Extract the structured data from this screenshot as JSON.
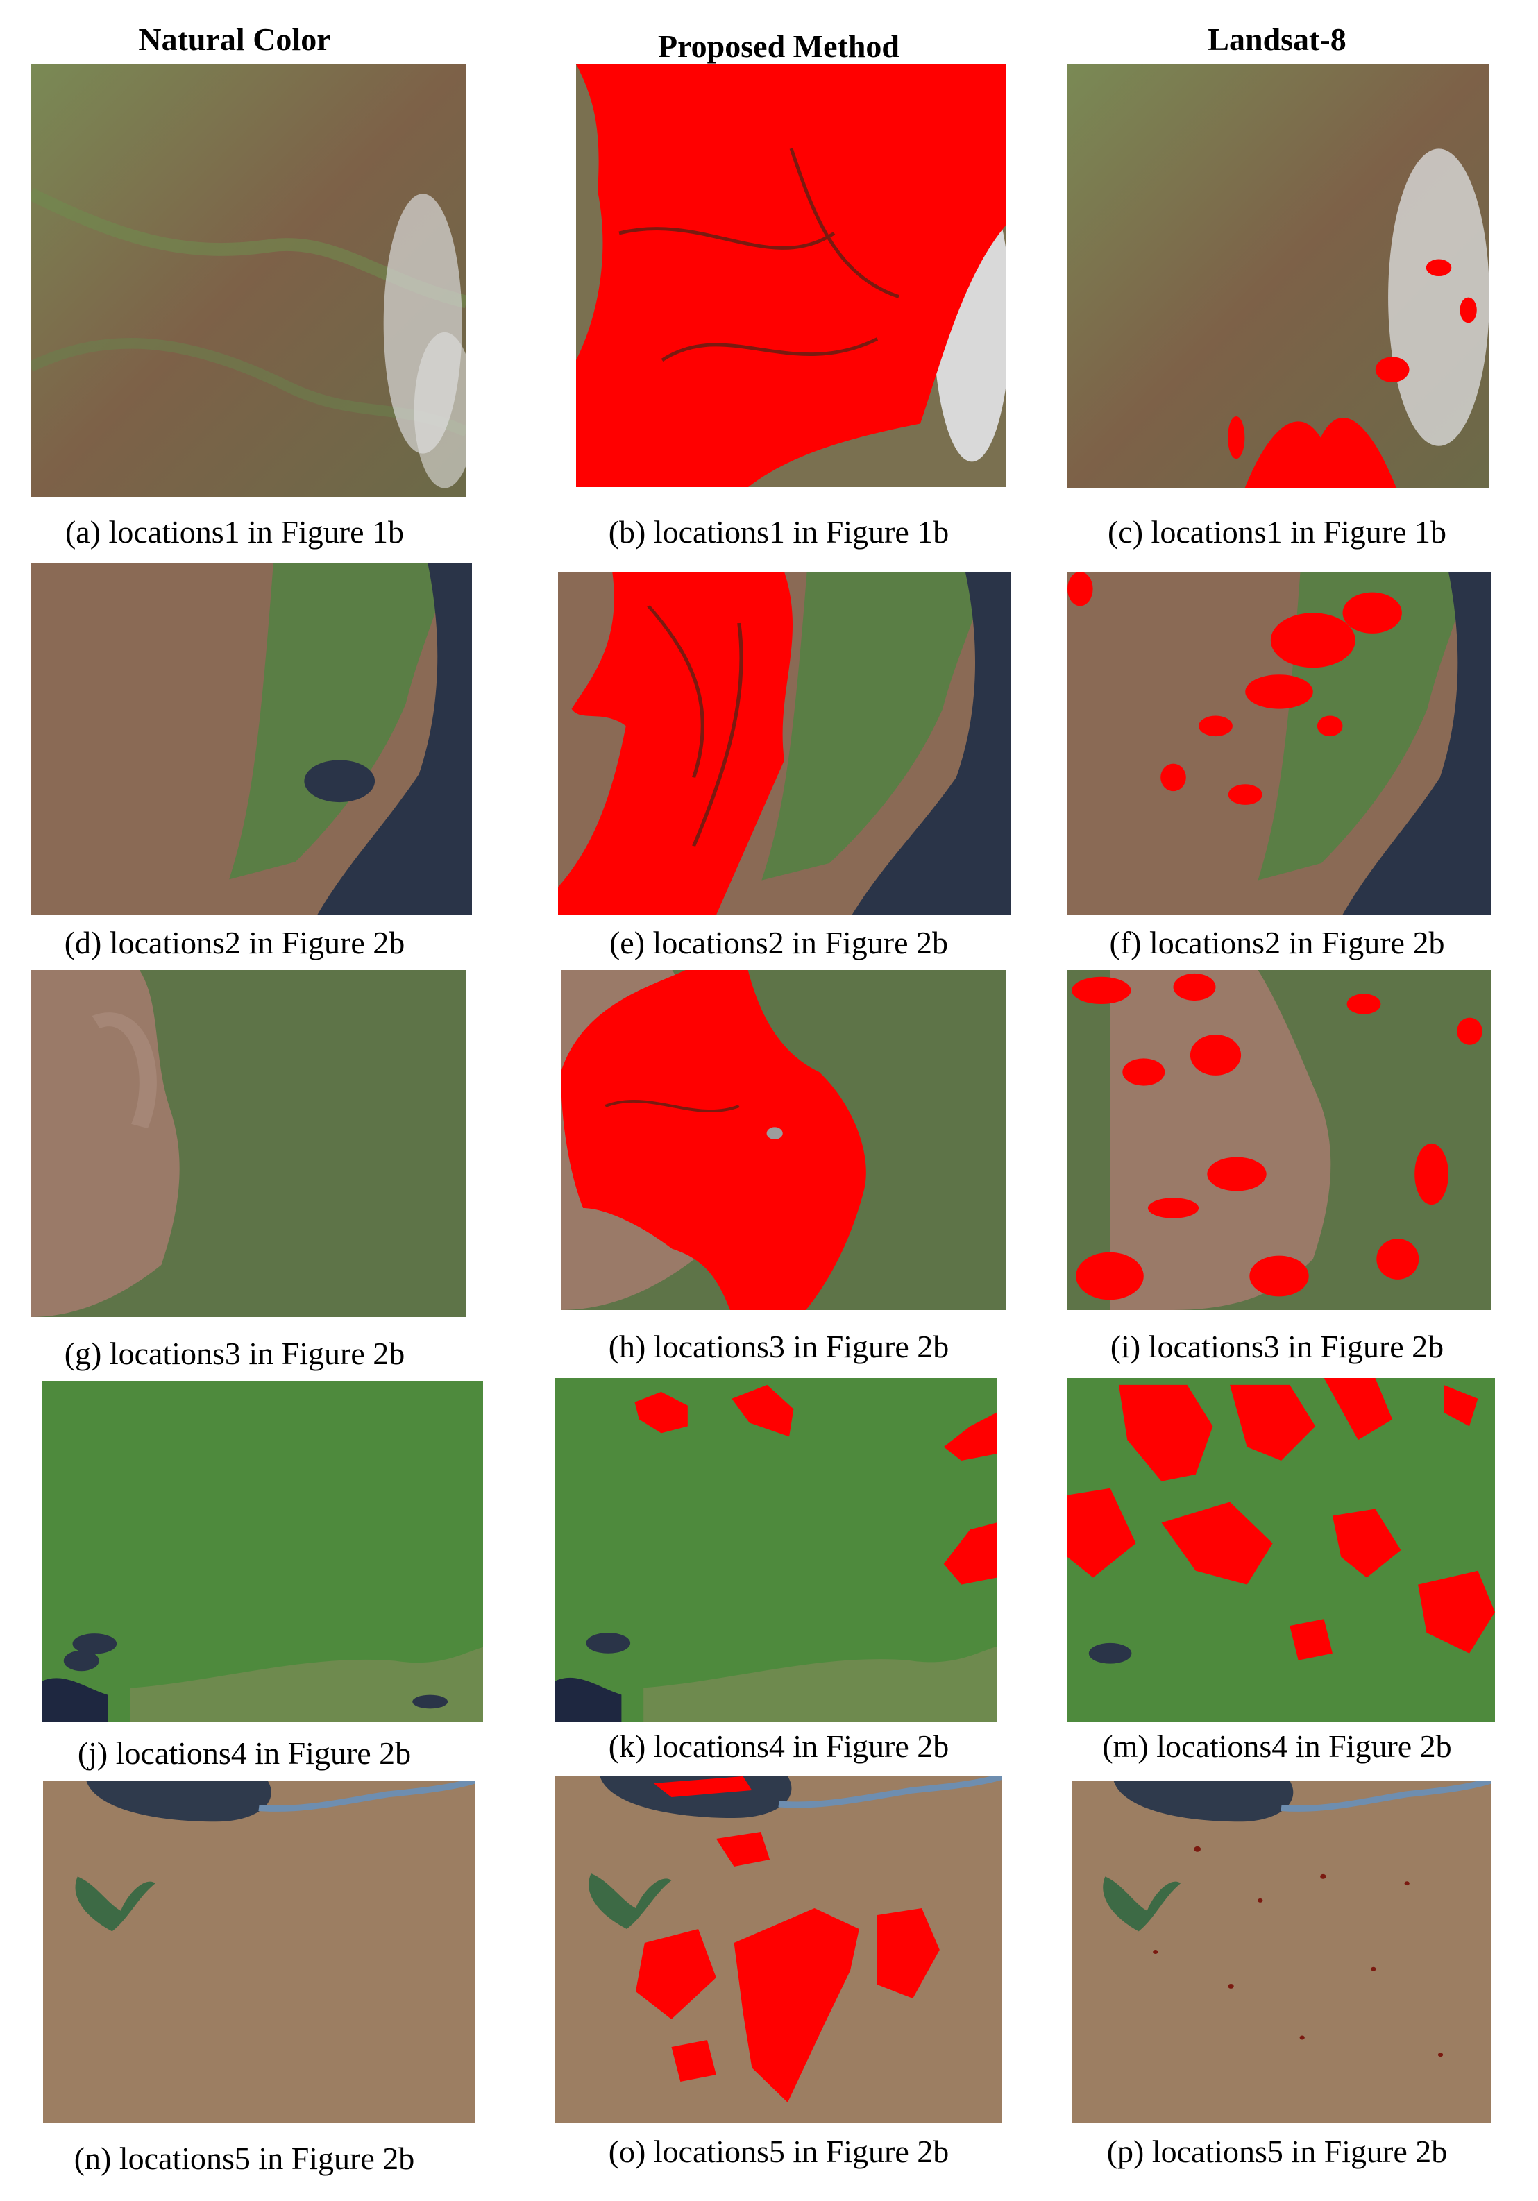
{
  "figure": {
    "column_headers": [
      "Natural Color",
      "Proposed Method",
      "Landsat-8"
    ],
    "panels": [
      {
        "id": "a",
        "caption": "(a) locations1 in Figure 1b",
        "style": "natural",
        "location": 1
      },
      {
        "id": "b",
        "caption": "(b) locations1 in Figure 1b",
        "style": "proposed",
        "location": 1
      },
      {
        "id": "c",
        "caption": "(c) locations1 in Figure 1b",
        "style": "landsat",
        "location": 1
      },
      {
        "id": "d",
        "caption": "(d) locations2 in Figure 2b",
        "style": "natural",
        "location": 2
      },
      {
        "id": "e",
        "caption": "(e) locations2 in Figure 2b",
        "style": "proposed",
        "location": 2
      },
      {
        "id": "f",
        "caption": "(f) locations2 in Figure 2b",
        "style": "landsat",
        "location": 2
      },
      {
        "id": "g",
        "caption": "(g) locations3 in Figure 2b",
        "style": "natural",
        "location": 3
      },
      {
        "id": "h",
        "caption": "(h) locations3 in Figure 2b",
        "style": "proposed",
        "location": 3
      },
      {
        "id": "i",
        "caption": "(i) locations3 in Figure 2b",
        "style": "landsat",
        "location": 3
      },
      {
        "id": "j",
        "caption": "(j) locations4 in Figure 2b",
        "style": "natural",
        "location": 4
      },
      {
        "id": "k",
        "caption": "(k) locations4 in Figure 2b",
        "style": "proposed",
        "location": 4
      },
      {
        "id": "m",
        "caption": "(m) locations4 in Figure 2b",
        "style": "landsat",
        "location": 4
      },
      {
        "id": "n",
        "caption": "(n) locations5 in Figure 2b",
        "style": "natural",
        "location": 5
      },
      {
        "id": "o",
        "caption": "(o) locations5 in Figure 2b",
        "style": "proposed",
        "location": 5
      },
      {
        "id": "p",
        "caption": "(p) locations5 in Figure 2b",
        "style": "landsat",
        "location": 5
      }
    ]
  },
  "colors": {
    "burn_mask": "#ff0000",
    "cloud": "#d9d9d9",
    "water": "#2a3448"
  }
}
